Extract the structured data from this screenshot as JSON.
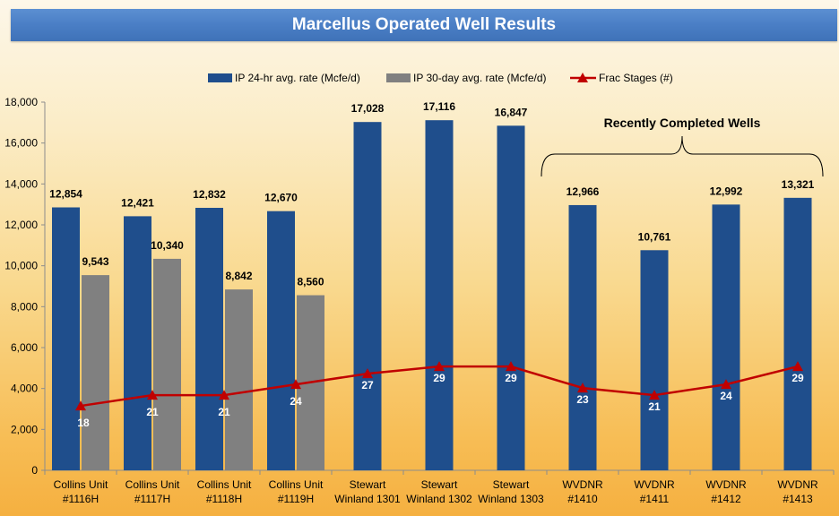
{
  "chart_data": {
    "type": "bar",
    "title": "Marcellus Operated Well Results",
    "categories": [
      [
        "Collins Unit",
        "#1116H"
      ],
      [
        "Collins Unit",
        "#1117H"
      ],
      [
        "Collins Unit",
        "#1118H"
      ],
      [
        "Collins Unit",
        "#1119H"
      ],
      [
        "Stewart",
        "Winland 1301"
      ],
      [
        "Stewart",
        "Winland 1302"
      ],
      [
        "Stewart",
        "Winland 1303"
      ],
      [
        "WVDNR",
        "#1410"
      ],
      [
        "WVDNR",
        "#1411"
      ],
      [
        "WVDNR",
        "#1412"
      ],
      [
        "WVDNR",
        "#1413"
      ]
    ],
    "series": [
      {
        "name": "IP 24-hr avg. rate (Mcfe/d)",
        "kind": "bar",
        "color": "#1f4e8c",
        "values": [
          12854,
          12421,
          12832,
          12670,
          17028,
          17116,
          16847,
          12966,
          10761,
          12992,
          13321
        ],
        "labels": [
          "12,854",
          "12,421",
          "12,832",
          "12,670",
          "17,028",
          "17,116",
          "16,847",
          "12,966",
          "10,761",
          "12,992",
          "13,321"
        ]
      },
      {
        "name": "IP 30-day avg. rate (Mcfe/d)",
        "kind": "bar",
        "color": "#808080",
        "values": [
          9543,
          10340,
          8842,
          8560,
          null,
          null,
          null,
          null,
          null,
          null,
          null
        ],
        "labels": [
          "9,543",
          "10,340",
          "8,842",
          "8,560",
          "",
          "",
          "",
          "",
          "",
          "",
          ""
        ]
      },
      {
        "name": "Frac Stages (#)",
        "kind": "line",
        "color": "#c00000",
        "marker": "triangle",
        "values": [
          18,
          21,
          21,
          24,
          27,
          29,
          29,
          23,
          21,
          24,
          29
        ],
        "labels": [
          "18",
          "21",
          "21",
          "24",
          "27",
          "29",
          "29",
          "23",
          "21",
          "24",
          "29"
        ]
      }
    ],
    "ylim": [
      0,
      18000
    ],
    "yticks": [
      0,
      2000,
      4000,
      6000,
      8000,
      10000,
      12000,
      14000,
      16000,
      18000
    ],
    "ytick_labels": [
      "0",
      "2,000",
      "4,000",
      "6,000",
      "8,000",
      "10,000",
      "12,000",
      "14,000",
      "16,000",
      "18,000"
    ],
    "stage_scale": 175,
    "grid": false,
    "legend_position": "top-center",
    "annotation": {
      "text": "Recently Completed Wells",
      "from_index": 7,
      "to_index": 10
    }
  }
}
